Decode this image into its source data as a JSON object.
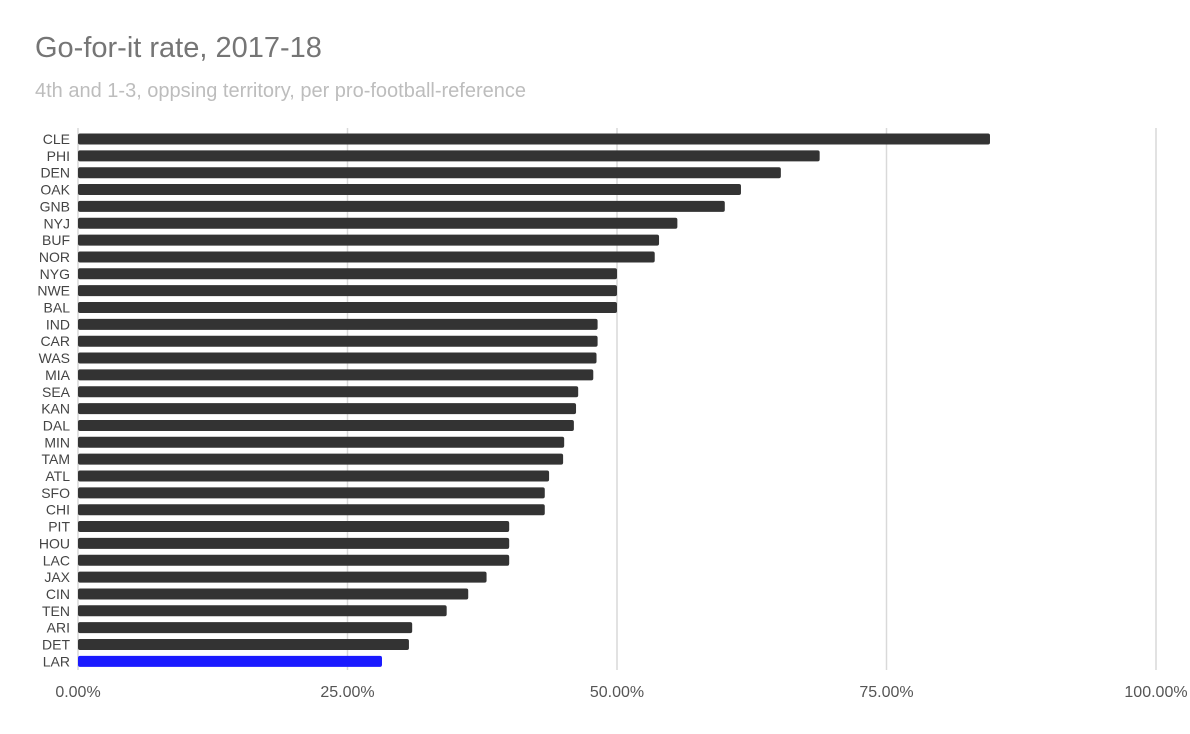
{
  "chart_data": {
    "type": "bar",
    "orientation": "horizontal",
    "title": "Go-for-it rate, 2017-18",
    "subtitle": "4th and 1-3, oppsing territory, per pro-football-reference",
    "categories": [
      "CLE",
      "PHI",
      "DEN",
      "OAK",
      "GNB",
      "NYJ",
      "BUF",
      "NOR",
      "NYG",
      "NWE",
      "BAL",
      "IND",
      "CAR",
      "WAS",
      "MIA",
      "SEA",
      "KAN",
      "DAL",
      "MIN",
      "TAM",
      "ATL",
      "SFO",
      "CHI",
      "PIT",
      "HOU",
      "LAC",
      "JAX",
      "CIN",
      "TEN",
      "ARI",
      "DET",
      "LAR"
    ],
    "values": [
      0.846,
      0.688,
      0.652,
      0.615,
      0.6,
      0.556,
      0.539,
      0.535,
      0.5,
      0.5,
      0.5,
      0.482,
      0.482,
      0.481,
      0.478,
      0.464,
      0.462,
      0.46,
      0.451,
      0.45,
      0.437,
      0.433,
      0.433,
      0.4,
      0.4,
      0.4,
      0.379,
      0.362,
      0.342,
      0.31,
      0.307,
      0.282
    ],
    "highlight": "LAR",
    "xlim": [
      0,
      1
    ],
    "xticks": [
      0,
      0.25,
      0.5,
      0.75,
      1.0
    ],
    "xtick_labels": [
      "0.00%",
      "25.00%",
      "50.00%",
      "75.00%",
      "100.00%"
    ],
    "grid": true,
    "colors": {
      "bar": "#333333",
      "highlight": "#1a1aff",
      "grid": "#d9d9d9"
    }
  }
}
